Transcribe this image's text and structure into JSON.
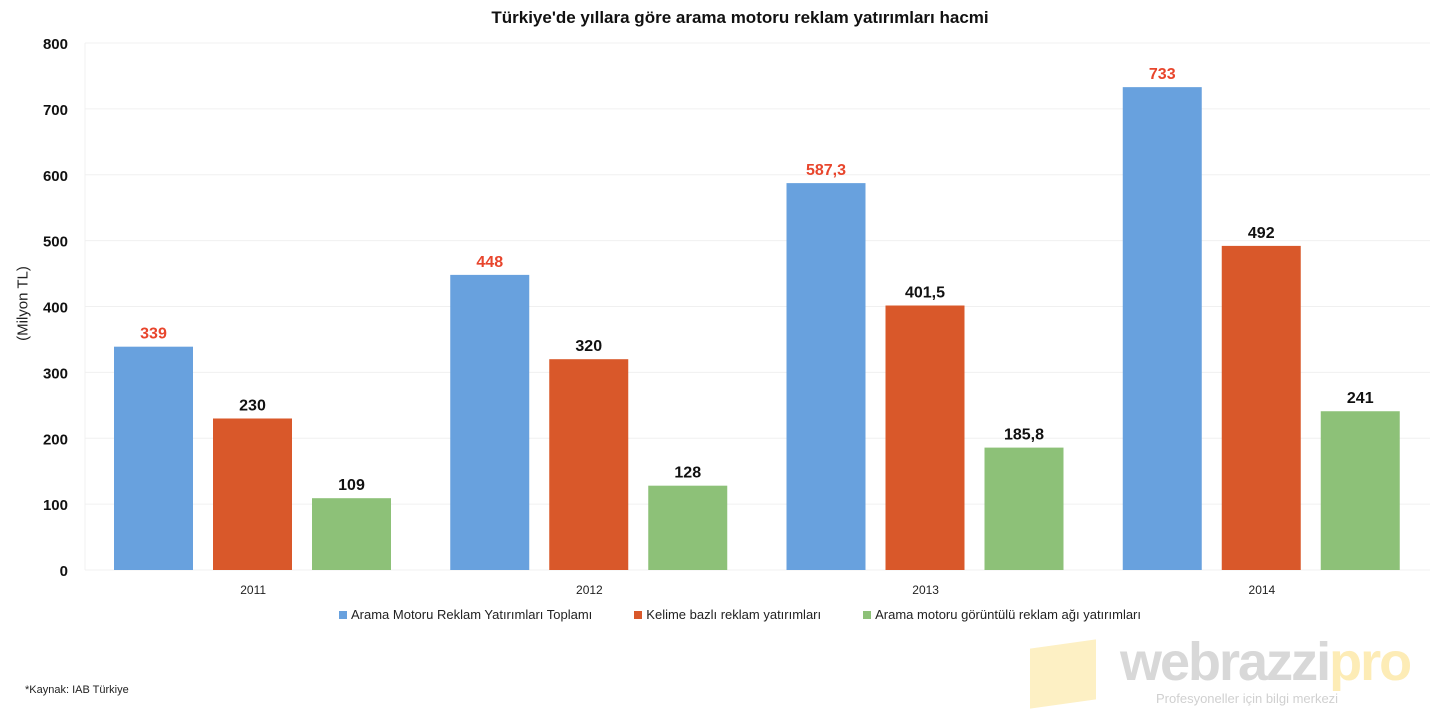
{
  "chart_data": {
    "type": "bar",
    "title": "Türkiye'de yıllara göre arama motoru reklam yatırımları hacmi",
    "xlabel": "",
    "ylabel": "(Milyon TL)",
    "ylim": [
      0,
      800
    ],
    "yticks": [
      0,
      100,
      200,
      300,
      400,
      500,
      600,
      700,
      800
    ],
    "grid": true,
    "legend_position": "bottom",
    "categories": [
      "2011",
      "2012",
      "2013",
      "2014"
    ],
    "series": [
      {
        "name": "Arama Motoru Reklam Yatırımları Toplamı",
        "color": "#68a1de",
        "label_color": "#e8452c",
        "values": [
          339,
          448,
          587.3,
          733
        ],
        "labels": [
          "339",
          "448",
          "587,3",
          "733"
        ]
      },
      {
        "name": "Kelime bazlı reklam yatırımları",
        "color": "#d9582a",
        "label_color": "#111111",
        "values": [
          230,
          320,
          401.5,
          492
        ],
        "labels": [
          "230",
          "320",
          "401,5",
          "492"
        ]
      },
      {
        "name": "Arama motoru görüntülü reklam ağı yatırımları",
        "color": "#8dc178",
        "label_color": "#111111",
        "values": [
          109,
          128,
          185.8,
          241
        ],
        "labels": [
          "109",
          "128",
          "185,8",
          "241"
        ]
      }
    ]
  },
  "source": "*Kaynak: IAB Türkiye",
  "watermark": {
    "brand": "webrazzi",
    "brand_suffix": "pro",
    "tagline": "Profesyoneller için bilgi merkezi"
  }
}
